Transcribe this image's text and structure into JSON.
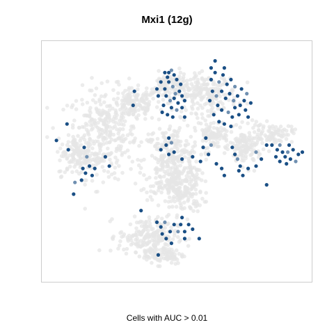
{
  "chart_data": {
    "type": "scatter",
    "title": "Mxi1 (12g)",
    "caption": "Cells with AUC > 0.01",
    "xlabel": "",
    "ylabel": "",
    "xlim": [
      0,
      100
    ],
    "ylim": [
      0,
      100
    ],
    "grid": false,
    "legend": "none",
    "background_color": "#e6e6e6",
    "highlight_color": "#1a4f85",
    "highlight_color_light": "#6f8fb0",
    "background_clusters": [
      {
        "cx": 22,
        "cy": 62,
        "rx": 13,
        "ry": 19,
        "n": 320
      },
      {
        "cx": 34,
        "cy": 74,
        "rx": 9,
        "ry": 7,
        "n": 140
      },
      {
        "cx": 48,
        "cy": 50,
        "rx": 11,
        "ry": 16,
        "n": 320
      },
      {
        "cx": 52,
        "cy": 37,
        "rx": 8,
        "ry": 9,
        "n": 150
      },
      {
        "cx": 61,
        "cy": 79,
        "rx": 12,
        "ry": 8,
        "n": 200
      },
      {
        "cx": 47,
        "cy": 82,
        "rx": 7,
        "ry": 6,
        "n": 100
      },
      {
        "cx": 76,
        "cy": 56,
        "rx": 6,
        "ry": 8,
        "n": 130
      },
      {
        "cx": 86,
        "cy": 62,
        "rx": 8,
        "ry": 4,
        "n": 80
      },
      {
        "cx": 39,
        "cy": 18,
        "rx": 11,
        "ry": 8,
        "n": 200
      },
      {
        "cx": 45,
        "cy": 10,
        "rx": 8,
        "ry": 4,
        "n": 90
      },
      {
        "cx": 13,
        "cy": 52,
        "rx": 8,
        "ry": 8,
        "n": 110
      },
      {
        "cx": 64,
        "cy": 62,
        "rx": 6,
        "ry": 6,
        "n": 90
      }
    ],
    "highlighted_points": [
      {
        "x": 45.5,
        "y": 81,
        "v": 1
      },
      {
        "x": 47,
        "y": 84,
        "v": 1
      },
      {
        "x": 48.5,
        "y": 82,
        "v": 0.6
      },
      {
        "x": 50,
        "y": 85,
        "v": 1
      },
      {
        "x": 51,
        "y": 80,
        "v": 1
      },
      {
        "x": 46,
        "y": 78,
        "v": 1
      },
      {
        "x": 47.5,
        "y": 76,
        "v": 0.7
      },
      {
        "x": 49,
        "y": 77,
        "v": 1
      },
      {
        "x": 50.5,
        "y": 75,
        "v": 1
      },
      {
        "x": 52,
        "y": 78,
        "v": 1
      },
      {
        "x": 45,
        "y": 74,
        "v": 1
      },
      {
        "x": 48,
        "y": 73,
        "v": 1
      },
      {
        "x": 49.5,
        "y": 79,
        "v": 0.6
      },
      {
        "x": 46.5,
        "y": 86,
        "v": 1
      },
      {
        "x": 44,
        "y": 84,
        "v": 1
      },
      {
        "x": 47,
        "y": 88,
        "v": 1
      },
      {
        "x": 49,
        "y": 87,
        "v": 1
      },
      {
        "x": 51.5,
        "y": 83,
        "v": 1
      },
      {
        "x": 43,
        "y": 78,
        "v": 1
      },
      {
        "x": 44.5,
        "y": 71,
        "v": 1
      },
      {
        "x": 46.5,
        "y": 70,
        "v": 1
      },
      {
        "x": 48.5,
        "y": 69,
        "v": 1
      },
      {
        "x": 50,
        "y": 72,
        "v": 0.6
      },
      {
        "x": 52,
        "y": 73,
        "v": 1
      },
      {
        "x": 53,
        "y": 76,
        "v": 1
      },
      {
        "x": 42.5,
        "y": 81,
        "v": 1
      },
      {
        "x": 48,
        "y": 89,
        "v": 0.7
      },
      {
        "x": 45.5,
        "y": 88,
        "v": 1
      },
      {
        "x": 53,
        "y": 69,
        "v": 1
      },
      {
        "x": 63,
        "y": 85,
        "v": 1
      },
      {
        "x": 64.5,
        "y": 88,
        "v": 1
      },
      {
        "x": 66,
        "y": 84,
        "v": 0.6
      },
      {
        "x": 67.5,
        "y": 87,
        "v": 1
      },
      {
        "x": 69,
        "y": 83,
        "v": 1
      },
      {
        "x": 70.5,
        "y": 85,
        "v": 1
      },
      {
        "x": 63.5,
        "y": 80,
        "v": 1
      },
      {
        "x": 65,
        "y": 78,
        "v": 0.6
      },
      {
        "x": 67,
        "y": 80,
        "v": 1
      },
      {
        "x": 68.5,
        "y": 77,
        "v": 1
      },
      {
        "x": 70,
        "y": 79,
        "v": 1
      },
      {
        "x": 71.5,
        "y": 76,
        "v": 0.6
      },
      {
        "x": 73,
        "y": 78,
        "v": 1
      },
      {
        "x": 74,
        "y": 74,
        "v": 1
      },
      {
        "x": 72,
        "y": 73,
        "v": 1
      },
      {
        "x": 75.5,
        "y": 76,
        "v": 1
      },
      {
        "x": 65.5,
        "y": 74,
        "v": 1
      },
      {
        "x": 67,
        "y": 72,
        "v": 1
      },
      {
        "x": 69.5,
        "y": 71,
        "v": 0.7
      },
      {
        "x": 71,
        "y": 69,
        "v": 1
      },
      {
        "x": 73.5,
        "y": 70,
        "v": 1
      },
      {
        "x": 76,
        "y": 72,
        "v": 1
      },
      {
        "x": 77,
        "y": 69,
        "v": 1
      },
      {
        "x": 64,
        "y": 70,
        "v": 1
      },
      {
        "x": 66,
        "y": 67,
        "v": 1
      },
      {
        "x": 68,
        "y": 66,
        "v": 1
      },
      {
        "x": 70.5,
        "y": 65,
        "v": 1
      },
      {
        "x": 62.5,
        "y": 76,
        "v": 1
      },
      {
        "x": 74.5,
        "y": 81,
        "v": 1
      },
      {
        "x": 76.5,
        "y": 79,
        "v": 0.6
      },
      {
        "x": 78,
        "y": 75,
        "v": 1
      },
      {
        "x": 63,
        "y": 90,
        "v": 1
      },
      {
        "x": 68,
        "y": 90,
        "v": 1
      },
      {
        "x": 64.5,
        "y": 93,
        "v": 1
      },
      {
        "x": 72,
        "y": 82,
        "v": 0.7
      },
      {
        "x": 47,
        "y": 60,
        "v": 1
      },
      {
        "x": 48,
        "y": 58,
        "v": 0.6
      },
      {
        "x": 46,
        "y": 57,
        "v": 1
      },
      {
        "x": 49,
        "y": 54,
        "v": 1
      },
      {
        "x": 47,
        "y": 53,
        "v": 1
      },
      {
        "x": 44,
        "y": 55,
        "v": 1
      },
      {
        "x": 52,
        "y": 51,
        "v": 1
      },
      {
        "x": 61,
        "y": 60,
        "v": 1
      },
      {
        "x": 60,
        "y": 56,
        "v": 1
      },
      {
        "x": 62,
        "y": 53,
        "v": 1
      },
      {
        "x": 63,
        "y": 57,
        "v": 0.6
      },
      {
        "x": 59,
        "y": 50,
        "v": 1
      },
      {
        "x": 65,
        "y": 49,
        "v": 1
      },
      {
        "x": 67,
        "y": 47,
        "v": 1
      },
      {
        "x": 68,
        "y": 44,
        "v": 1
      },
      {
        "x": 56,
        "y": 52,
        "v": 1
      },
      {
        "x": 71,
        "y": 56,
        "v": 1
      },
      {
        "x": 72,
        "y": 53,
        "v": 1
      },
      {
        "x": 73,
        "y": 51,
        "v": 0.6
      },
      {
        "x": 74,
        "y": 48,
        "v": 1
      },
      {
        "x": 73.5,
        "y": 46,
        "v": 1
      },
      {
        "x": 75,
        "y": 44,
        "v": 1
      },
      {
        "x": 77,
        "y": 47,
        "v": 1
      },
      {
        "x": 80,
        "y": 54,
        "v": 0.6
      },
      {
        "x": 82,
        "y": 51,
        "v": 1
      },
      {
        "x": 80,
        "y": 48,
        "v": 1
      },
      {
        "x": 84,
        "y": 40,
        "v": 1
      },
      {
        "x": 84,
        "y": 57,
        "v": 1
      },
      {
        "x": 86,
        "y": 57,
        "v": 1
      },
      {
        "x": 88,
        "y": 55,
        "v": 1
      },
      {
        "x": 89,
        "y": 57,
        "v": 0.6
      },
      {
        "x": 90,
        "y": 54,
        "v": 1
      },
      {
        "x": 91,
        "y": 52,
        "v": 1
      },
      {
        "x": 92,
        "y": 54,
        "v": 0.6
      },
      {
        "x": 93,
        "y": 51,
        "v": 1
      },
      {
        "x": 94,
        "y": 55,
        "v": 1
      },
      {
        "x": 96,
        "y": 53,
        "v": 1
      },
      {
        "x": 97.5,
        "y": 54,
        "v": 1
      },
      {
        "x": 89,
        "y": 50,
        "v": 1
      },
      {
        "x": 91.5,
        "y": 49,
        "v": 1
      },
      {
        "x": 95,
        "y": 50,
        "v": 0.7
      },
      {
        "x": 92.5,
        "y": 57,
        "v": 1
      },
      {
        "x": 87.5,
        "y": 52,
        "v": 1
      },
      {
        "x": 4.5,
        "y": 59,
        "v": 1
      },
      {
        "x": 8.5,
        "y": 66,
        "v": 1
      },
      {
        "x": 9,
        "y": 55,
        "v": 1
      },
      {
        "x": 15,
        "y": 56,
        "v": 1
      },
      {
        "x": 16,
        "y": 52,
        "v": 0.6
      },
      {
        "x": 14.5,
        "y": 47,
        "v": 1
      },
      {
        "x": 15.5,
        "y": 45,
        "v": 1
      },
      {
        "x": 17,
        "y": 48,
        "v": 1
      },
      {
        "x": 18,
        "y": 44,
        "v": 1
      },
      {
        "x": 19,
        "y": 47,
        "v": 1
      },
      {
        "x": 23,
        "y": 52,
        "v": 1
      },
      {
        "x": 24.5,
        "y": 48,
        "v": 1
      },
      {
        "x": 11,
        "y": 36,
        "v": 1
      },
      {
        "x": 11.5,
        "y": 41,
        "v": 0.6
      },
      {
        "x": 14,
        "y": 42,
        "v": 1
      },
      {
        "x": 34,
        "y": 80,
        "v": 1
      },
      {
        "x": 33.5,
        "y": 74,
        "v": 1
      },
      {
        "x": 42.5,
        "y": 24,
        "v": 1
      },
      {
        "x": 44,
        "y": 22,
        "v": 1
      },
      {
        "x": 45.5,
        "y": 24,
        "v": 0.6
      },
      {
        "x": 44.5,
        "y": 19,
        "v": 1
      },
      {
        "x": 46,
        "y": 17,
        "v": 1
      },
      {
        "x": 47.5,
        "y": 20,
        "v": 1
      },
      {
        "x": 49,
        "y": 23,
        "v": 1
      },
      {
        "x": 50.5,
        "y": 20,
        "v": 0.7
      },
      {
        "x": 51.5,
        "y": 23,
        "v": 1
      },
      {
        "x": 53,
        "y": 20,
        "v": 1
      },
      {
        "x": 54.5,
        "y": 23,
        "v": 1
      },
      {
        "x": 56,
        "y": 21,
        "v": 1
      },
      {
        "x": 53,
        "y": 17,
        "v": 1
      },
      {
        "x": 58.5,
        "y": 17,
        "v": 1
      },
      {
        "x": 48,
        "y": 15,
        "v": 1
      },
      {
        "x": 43,
        "y": 10,
        "v": 1
      },
      {
        "x": 36.5,
        "y": 29,
        "v": 1
      },
      {
        "x": 52,
        "y": 26,
        "v": 1
      }
    ]
  }
}
